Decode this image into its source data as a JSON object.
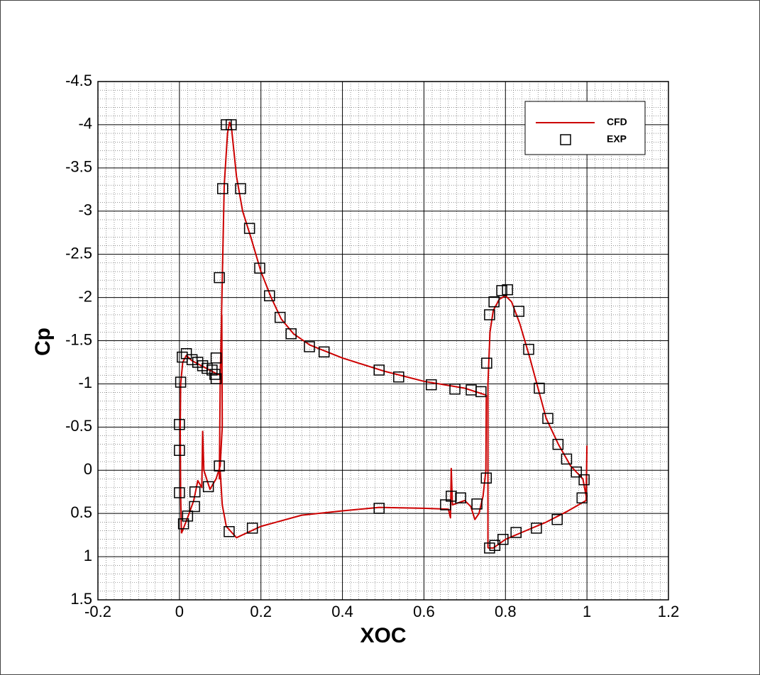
{
  "chart_data": {
    "type": "line",
    "x_label": "XOC",
    "y_label": "Cp",
    "xlim": [
      -0.2,
      1.2
    ],
    "xticks": [
      -0.2,
      0,
      0.2,
      0.4,
      0.6,
      0.8,
      1,
      1.2
    ],
    "ylim": [
      1.5,
      -4.5
    ],
    "yticks": [
      1.5,
      1,
      0.5,
      0,
      -0.5,
      -1,
      -1.5,
      -2,
      -2.5,
      -3,
      -3.5,
      -4,
      -4.5
    ],
    "grid": true,
    "minor_grid": true,
    "legend": "top-right",
    "series": [
      {
        "name": "CFD",
        "mark": "line",
        "color": "#cc0000",
        "x": [
          0.005,
          0.003,
          0.002,
          0.003,
          0.008,
          0.017,
          0.03,
          0.05,
          0.07,
          0.09,
          0.1,
          0.104,
          0.105,
          0.1,
          0.09,
          0.075,
          0.06,
          0.057,
          0.055,
          0.045,
          0.035,
          0.02,
          0.005,
          null,
          0.753,
          0.7,
          0.6,
          0.5,
          0.4,
          0.32,
          0.28,
          0.25,
          0.225,
          0.2,
          0.175,
          0.155,
          0.14,
          0.128,
          0.123,
          0.118,
          0.11,
          0.105,
          0.1,
          0.098,
          0.1,
          0.105,
          0.115,
          0.14,
          0.2,
          0.3,
          0.4,
          0.49,
          0.6,
          0.66,
          0.665,
          0.667,
          0.67,
          0.7,
          0.715,
          0.725,
          0.735,
          0.745,
          0.752,
          0.753,
          null,
          0.757,
          0.757,
          0.757,
          0.762,
          0.77,
          0.785,
          0.8,
          0.815,
          0.835,
          0.86,
          0.88,
          0.9,
          0.93,
          0.96,
          0.99,
          0.998,
          1.0,
          0.998,
          0.95,
          0.9,
          0.85,
          0.8,
          0.77,
          0.757
        ],
        "values": [
          0.73,
          0.3,
          -0.5,
          -1.0,
          -1.25,
          -1.33,
          -1.27,
          -1.22,
          -1.17,
          -1.12,
          -1.1,
          -1.8,
          -0.5,
          -0.05,
          0.1,
          0.22,
          0.0,
          -0.45,
          0.2,
          0.12,
          0.35,
          0.55,
          0.73,
          null,
          -0.87,
          -0.95,
          -1.03,
          -1.15,
          -1.3,
          -1.45,
          -1.58,
          -1.75,
          -2.0,
          -2.3,
          -2.7,
          -3.0,
          -3.4,
          -3.95,
          -4.03,
          -3.9,
          -3.3,
          -2.2,
          -1.0,
          0.1,
          0.0,
          0.4,
          0.65,
          0.78,
          0.65,
          0.52,
          0.47,
          0.43,
          0.44,
          0.45,
          0.55,
          -0.02,
          0.4,
          0.35,
          0.42,
          0.57,
          0.5,
          0.3,
          0.0,
          -0.87,
          null,
          0.9,
          0.0,
          -1.0,
          -1.6,
          -1.85,
          -1.98,
          -2.02,
          -1.95,
          -1.7,
          -1.3,
          -0.95,
          -0.6,
          -0.3,
          -0.05,
          0.1,
          0.3,
          -0.28,
          0.35,
          0.48,
          0.6,
          0.7,
          0.8,
          0.9,
          0.9
        ]
      },
      {
        "name": "EXP",
        "mark": "square",
        "color": "#000000",
        "x": [
          0.003,
          0,
          0,
          0,
          0.01,
          0.02,
          0.037,
          0.038,
          0.007,
          0.017,
          0.031,
          0.045,
          0.057,
          0.068,
          0.08,
          0.087,
          0.09,
          0.09,
          0.071,
          0.098,
          0.098,
          0.106,
          0.115,
          0.127,
          0.15,
          0.172,
          0.197,
          0.221,
          0.247,
          0.274,
          0.319,
          0.355,
          0.49,
          0.538,
          0.618,
          0.676,
          0.716,
          0.74,
          0.754,
          0.761,
          0.772,
          0.791,
          0.805,
          0.833,
          0.857,
          0.883,
          0.904,
          0.929,
          0.95,
          0.974,
          0.993,
          0.988,
          0.927,
          0.876,
          0.826,
          0.794,
          0.774,
          0.761,
          0.753,
          0.73,
          0.69,
          0.667,
          0.653,
          0.49,
          0.179,
          0.122
        ],
        "values": [
          -1.02,
          -0.53,
          -0.23,
          0.26,
          0.62,
          0.53,
          0.42,
          0.25,
          -1.31,
          -1.35,
          -1.28,
          -1.25,
          -1.21,
          -1.18,
          -1.16,
          -1.11,
          -1.06,
          -1.3,
          0.19,
          -0.05,
          -2.23,
          -3.26,
          -4.0,
          -4.0,
          -3.26,
          -2.8,
          -2.34,
          -2.02,
          -1.77,
          -1.58,
          -1.43,
          -1.37,
          -1.16,
          -1.08,
          -0.99,
          -0.94,
          -0.93,
          -0.91,
          -1.24,
          -1.8,
          -1.95,
          -2.08,
          -2.09,
          -1.84,
          -1.4,
          -0.95,
          -0.6,
          -0.3,
          -0.13,
          0.02,
          0.11,
          0.32,
          0.57,
          0.67,
          0.72,
          0.8,
          0.87,
          0.9,
          0.09,
          0.39,
          0.32,
          0.3,
          0.4,
          0.44,
          0.67,
          0.71
        ]
      }
    ]
  }
}
